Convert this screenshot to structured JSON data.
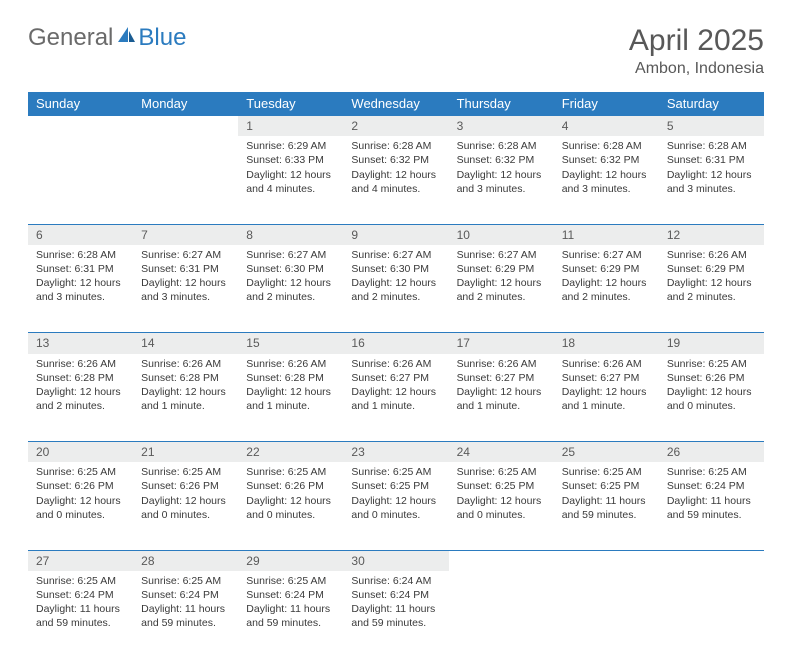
{
  "brand": {
    "part1": "General",
    "part2": "Blue"
  },
  "title": "April 2025",
  "location": "Ambon, Indonesia",
  "colors": {
    "header_bg": "#2b7bbf",
    "header_text": "#ffffff",
    "daynum_bg": "#eceded",
    "border": "#2b7bbf",
    "text": "#3a3a3a",
    "title": "#585858"
  },
  "weekdays": [
    "Sunday",
    "Monday",
    "Tuesday",
    "Wednesday",
    "Thursday",
    "Friday",
    "Saturday"
  ],
  "weeks": [
    [
      null,
      null,
      {
        "n": "1",
        "sr": "Sunrise: 6:29 AM",
        "ss": "Sunset: 6:33 PM",
        "dl": "Daylight: 12 hours and 4 minutes."
      },
      {
        "n": "2",
        "sr": "Sunrise: 6:28 AM",
        "ss": "Sunset: 6:32 PM",
        "dl": "Daylight: 12 hours and 4 minutes."
      },
      {
        "n": "3",
        "sr": "Sunrise: 6:28 AM",
        "ss": "Sunset: 6:32 PM",
        "dl": "Daylight: 12 hours and 3 minutes."
      },
      {
        "n": "4",
        "sr": "Sunrise: 6:28 AM",
        "ss": "Sunset: 6:32 PM",
        "dl": "Daylight: 12 hours and 3 minutes."
      },
      {
        "n": "5",
        "sr": "Sunrise: 6:28 AM",
        "ss": "Sunset: 6:31 PM",
        "dl": "Daylight: 12 hours and 3 minutes."
      }
    ],
    [
      {
        "n": "6",
        "sr": "Sunrise: 6:28 AM",
        "ss": "Sunset: 6:31 PM",
        "dl": "Daylight: 12 hours and 3 minutes."
      },
      {
        "n": "7",
        "sr": "Sunrise: 6:27 AM",
        "ss": "Sunset: 6:31 PM",
        "dl": "Daylight: 12 hours and 3 minutes."
      },
      {
        "n": "8",
        "sr": "Sunrise: 6:27 AM",
        "ss": "Sunset: 6:30 PM",
        "dl": "Daylight: 12 hours and 2 minutes."
      },
      {
        "n": "9",
        "sr": "Sunrise: 6:27 AM",
        "ss": "Sunset: 6:30 PM",
        "dl": "Daylight: 12 hours and 2 minutes."
      },
      {
        "n": "10",
        "sr": "Sunrise: 6:27 AM",
        "ss": "Sunset: 6:29 PM",
        "dl": "Daylight: 12 hours and 2 minutes."
      },
      {
        "n": "11",
        "sr": "Sunrise: 6:27 AM",
        "ss": "Sunset: 6:29 PM",
        "dl": "Daylight: 12 hours and 2 minutes."
      },
      {
        "n": "12",
        "sr": "Sunrise: 6:26 AM",
        "ss": "Sunset: 6:29 PM",
        "dl": "Daylight: 12 hours and 2 minutes."
      }
    ],
    [
      {
        "n": "13",
        "sr": "Sunrise: 6:26 AM",
        "ss": "Sunset: 6:28 PM",
        "dl": "Daylight: 12 hours and 2 minutes."
      },
      {
        "n": "14",
        "sr": "Sunrise: 6:26 AM",
        "ss": "Sunset: 6:28 PM",
        "dl": "Daylight: 12 hours and 1 minute."
      },
      {
        "n": "15",
        "sr": "Sunrise: 6:26 AM",
        "ss": "Sunset: 6:28 PM",
        "dl": "Daylight: 12 hours and 1 minute."
      },
      {
        "n": "16",
        "sr": "Sunrise: 6:26 AM",
        "ss": "Sunset: 6:27 PM",
        "dl": "Daylight: 12 hours and 1 minute."
      },
      {
        "n": "17",
        "sr": "Sunrise: 6:26 AM",
        "ss": "Sunset: 6:27 PM",
        "dl": "Daylight: 12 hours and 1 minute."
      },
      {
        "n": "18",
        "sr": "Sunrise: 6:26 AM",
        "ss": "Sunset: 6:27 PM",
        "dl": "Daylight: 12 hours and 1 minute."
      },
      {
        "n": "19",
        "sr": "Sunrise: 6:25 AM",
        "ss": "Sunset: 6:26 PM",
        "dl": "Daylight: 12 hours and 0 minutes."
      }
    ],
    [
      {
        "n": "20",
        "sr": "Sunrise: 6:25 AM",
        "ss": "Sunset: 6:26 PM",
        "dl": "Daylight: 12 hours and 0 minutes."
      },
      {
        "n": "21",
        "sr": "Sunrise: 6:25 AM",
        "ss": "Sunset: 6:26 PM",
        "dl": "Daylight: 12 hours and 0 minutes."
      },
      {
        "n": "22",
        "sr": "Sunrise: 6:25 AM",
        "ss": "Sunset: 6:26 PM",
        "dl": "Daylight: 12 hours and 0 minutes."
      },
      {
        "n": "23",
        "sr": "Sunrise: 6:25 AM",
        "ss": "Sunset: 6:25 PM",
        "dl": "Daylight: 12 hours and 0 minutes."
      },
      {
        "n": "24",
        "sr": "Sunrise: 6:25 AM",
        "ss": "Sunset: 6:25 PM",
        "dl": "Daylight: 12 hours and 0 minutes."
      },
      {
        "n": "25",
        "sr": "Sunrise: 6:25 AM",
        "ss": "Sunset: 6:25 PM",
        "dl": "Daylight: 11 hours and 59 minutes."
      },
      {
        "n": "26",
        "sr": "Sunrise: 6:25 AM",
        "ss": "Sunset: 6:24 PM",
        "dl": "Daylight: 11 hours and 59 minutes."
      }
    ],
    [
      {
        "n": "27",
        "sr": "Sunrise: 6:25 AM",
        "ss": "Sunset: 6:24 PM",
        "dl": "Daylight: 11 hours and 59 minutes."
      },
      {
        "n": "28",
        "sr": "Sunrise: 6:25 AM",
        "ss": "Sunset: 6:24 PM",
        "dl": "Daylight: 11 hours and 59 minutes."
      },
      {
        "n": "29",
        "sr": "Sunrise: 6:25 AM",
        "ss": "Sunset: 6:24 PM",
        "dl": "Daylight: 11 hours and 59 minutes."
      },
      {
        "n": "30",
        "sr": "Sunrise: 6:24 AM",
        "ss": "Sunset: 6:24 PM",
        "dl": "Daylight: 11 hours and 59 minutes."
      },
      null,
      null,
      null
    ]
  ]
}
